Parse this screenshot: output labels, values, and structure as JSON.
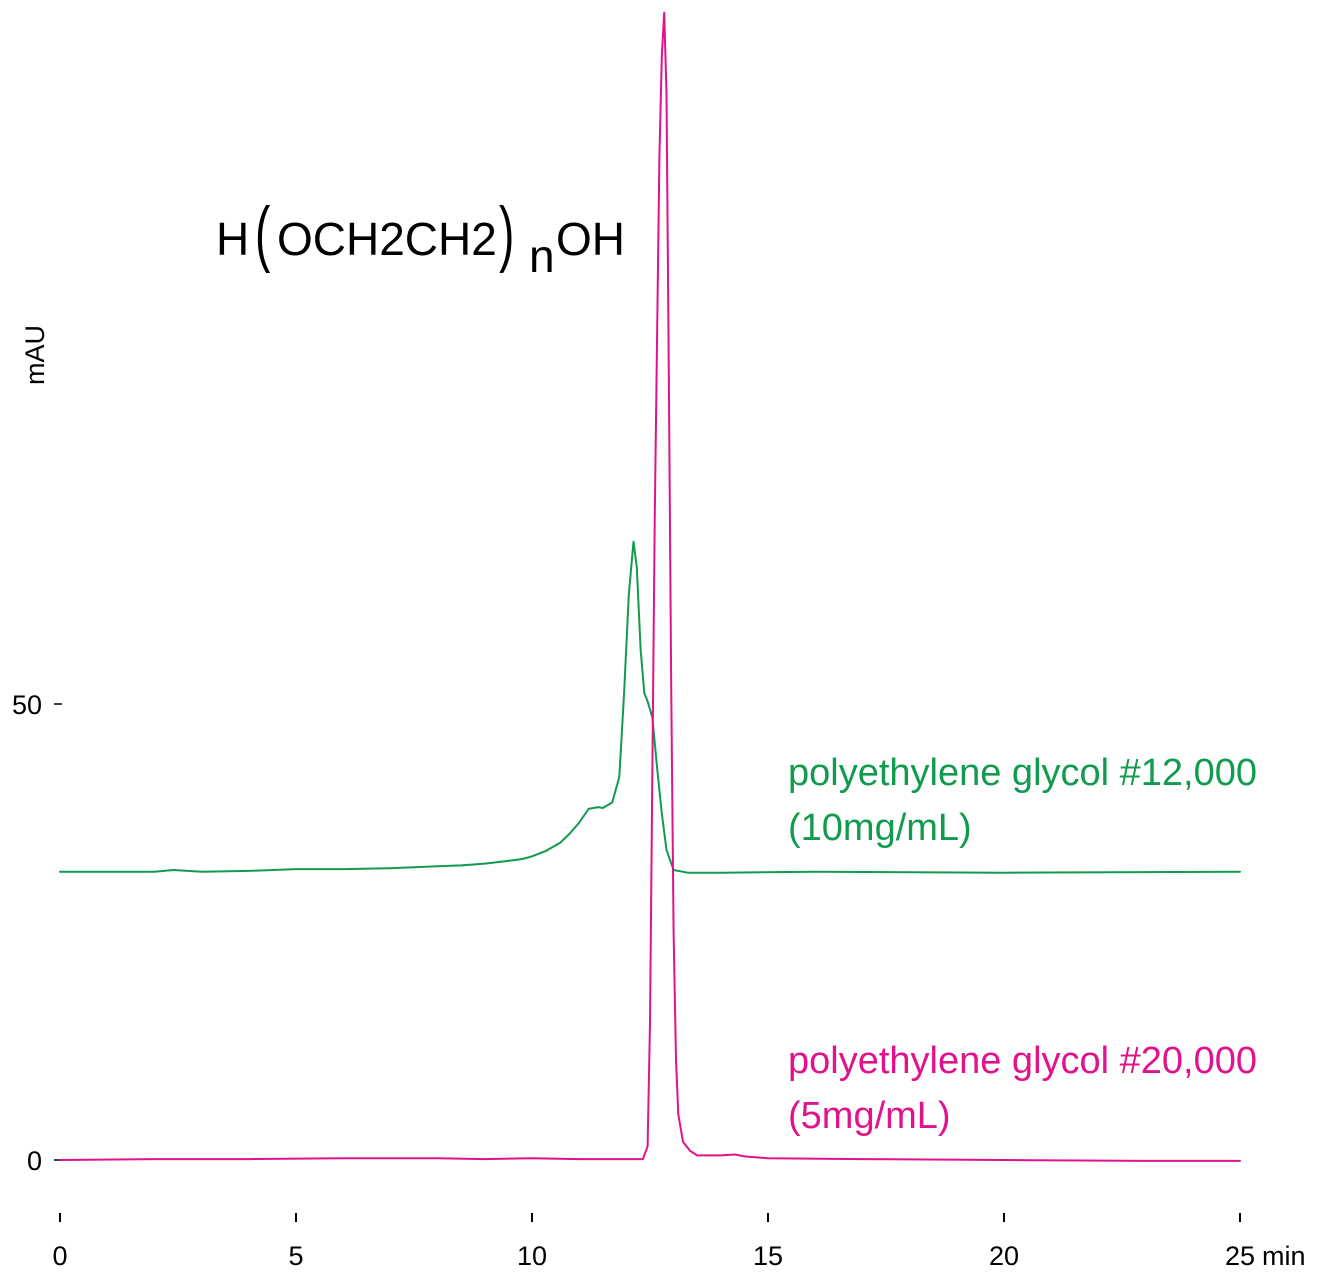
{
  "chart_data": {
    "type": "line",
    "title": "",
    "xlabel": "min",
    "ylabel": "mAU",
    "xlim": [
      0,
      25
    ],
    "ylim": [
      0,
      126
    ],
    "x_ticks": [
      0,
      5,
      10,
      15,
      20,
      25
    ],
    "y_ticks": [
      0,
      50
    ],
    "grid": false,
    "legend": "none",
    "annotations": {
      "formula_parts": [
        "H",
        "(",
        "OCH2CH2",
        ")",
        "n",
        "OH"
      ]
    },
    "series": [
      {
        "name": "polyethylene glycol #12,000",
        "name_line2": "(10mg/mL)",
        "color": "#119b4e",
        "x": [
          0,
          1,
          2,
          2.4,
          3,
          4,
          5,
          6,
          7,
          8,
          8.5,
          9,
          9.5,
          9.8,
          10,
          10.3,
          10.6,
          10.8,
          11,
          11.2,
          11.4,
          11.5,
          11.7,
          11.85,
          11.95,
          12.05,
          12.15,
          12.22,
          12.3,
          12.38,
          12.45,
          12.55,
          12.65,
          12.75,
          12.85,
          13,
          13.3,
          14,
          16,
          20,
          25
        ],
        "values": [
          31.6,
          31.6,
          31.6,
          31.8,
          31.6,
          31.7,
          31.9,
          31.9,
          32.0,
          32.2,
          32.3,
          32.5,
          32.8,
          33.0,
          33.3,
          33.9,
          34.8,
          35.8,
          37.0,
          38.5,
          38.7,
          38.6,
          39.2,
          42.0,
          51.0,
          62.0,
          67.8,
          65.0,
          56.0,
          51.2,
          50.3,
          48.5,
          43.0,
          38.0,
          34.0,
          31.8,
          31.5,
          31.5,
          31.6,
          31.5,
          31.6
        ]
      },
      {
        "name": "polyethylene glycol #20,000",
        "name_line2": "(5mg/mL)",
        "color": "#e0138c",
        "x": [
          0,
          2,
          4,
          6,
          8,
          9,
          10,
          11,
          12,
          12.35,
          12.45,
          12.5,
          12.6,
          12.7,
          12.75,
          12.8,
          12.85,
          12.9,
          12.95,
          13,
          13.05,
          13.1,
          13.2,
          13.35,
          13.5,
          14,
          14.3,
          14.5,
          15,
          17,
          20,
          23,
          25
        ],
        "values": [
          0.0,
          0.1,
          0.1,
          0.2,
          0.2,
          0.1,
          0.2,
          0.1,
          0.1,
          0.1,
          1.5,
          15.0,
          70.0,
          110.0,
          121.0,
          125.8,
          117.0,
          85.0,
          52.0,
          25.0,
          11.0,
          5.0,
          2.0,
          1.0,
          0.5,
          0.5,
          0.6,
          0.4,
          0.2,
          0.1,
          0.0,
          -0.1,
          -0.1
        ]
      }
    ]
  }
}
